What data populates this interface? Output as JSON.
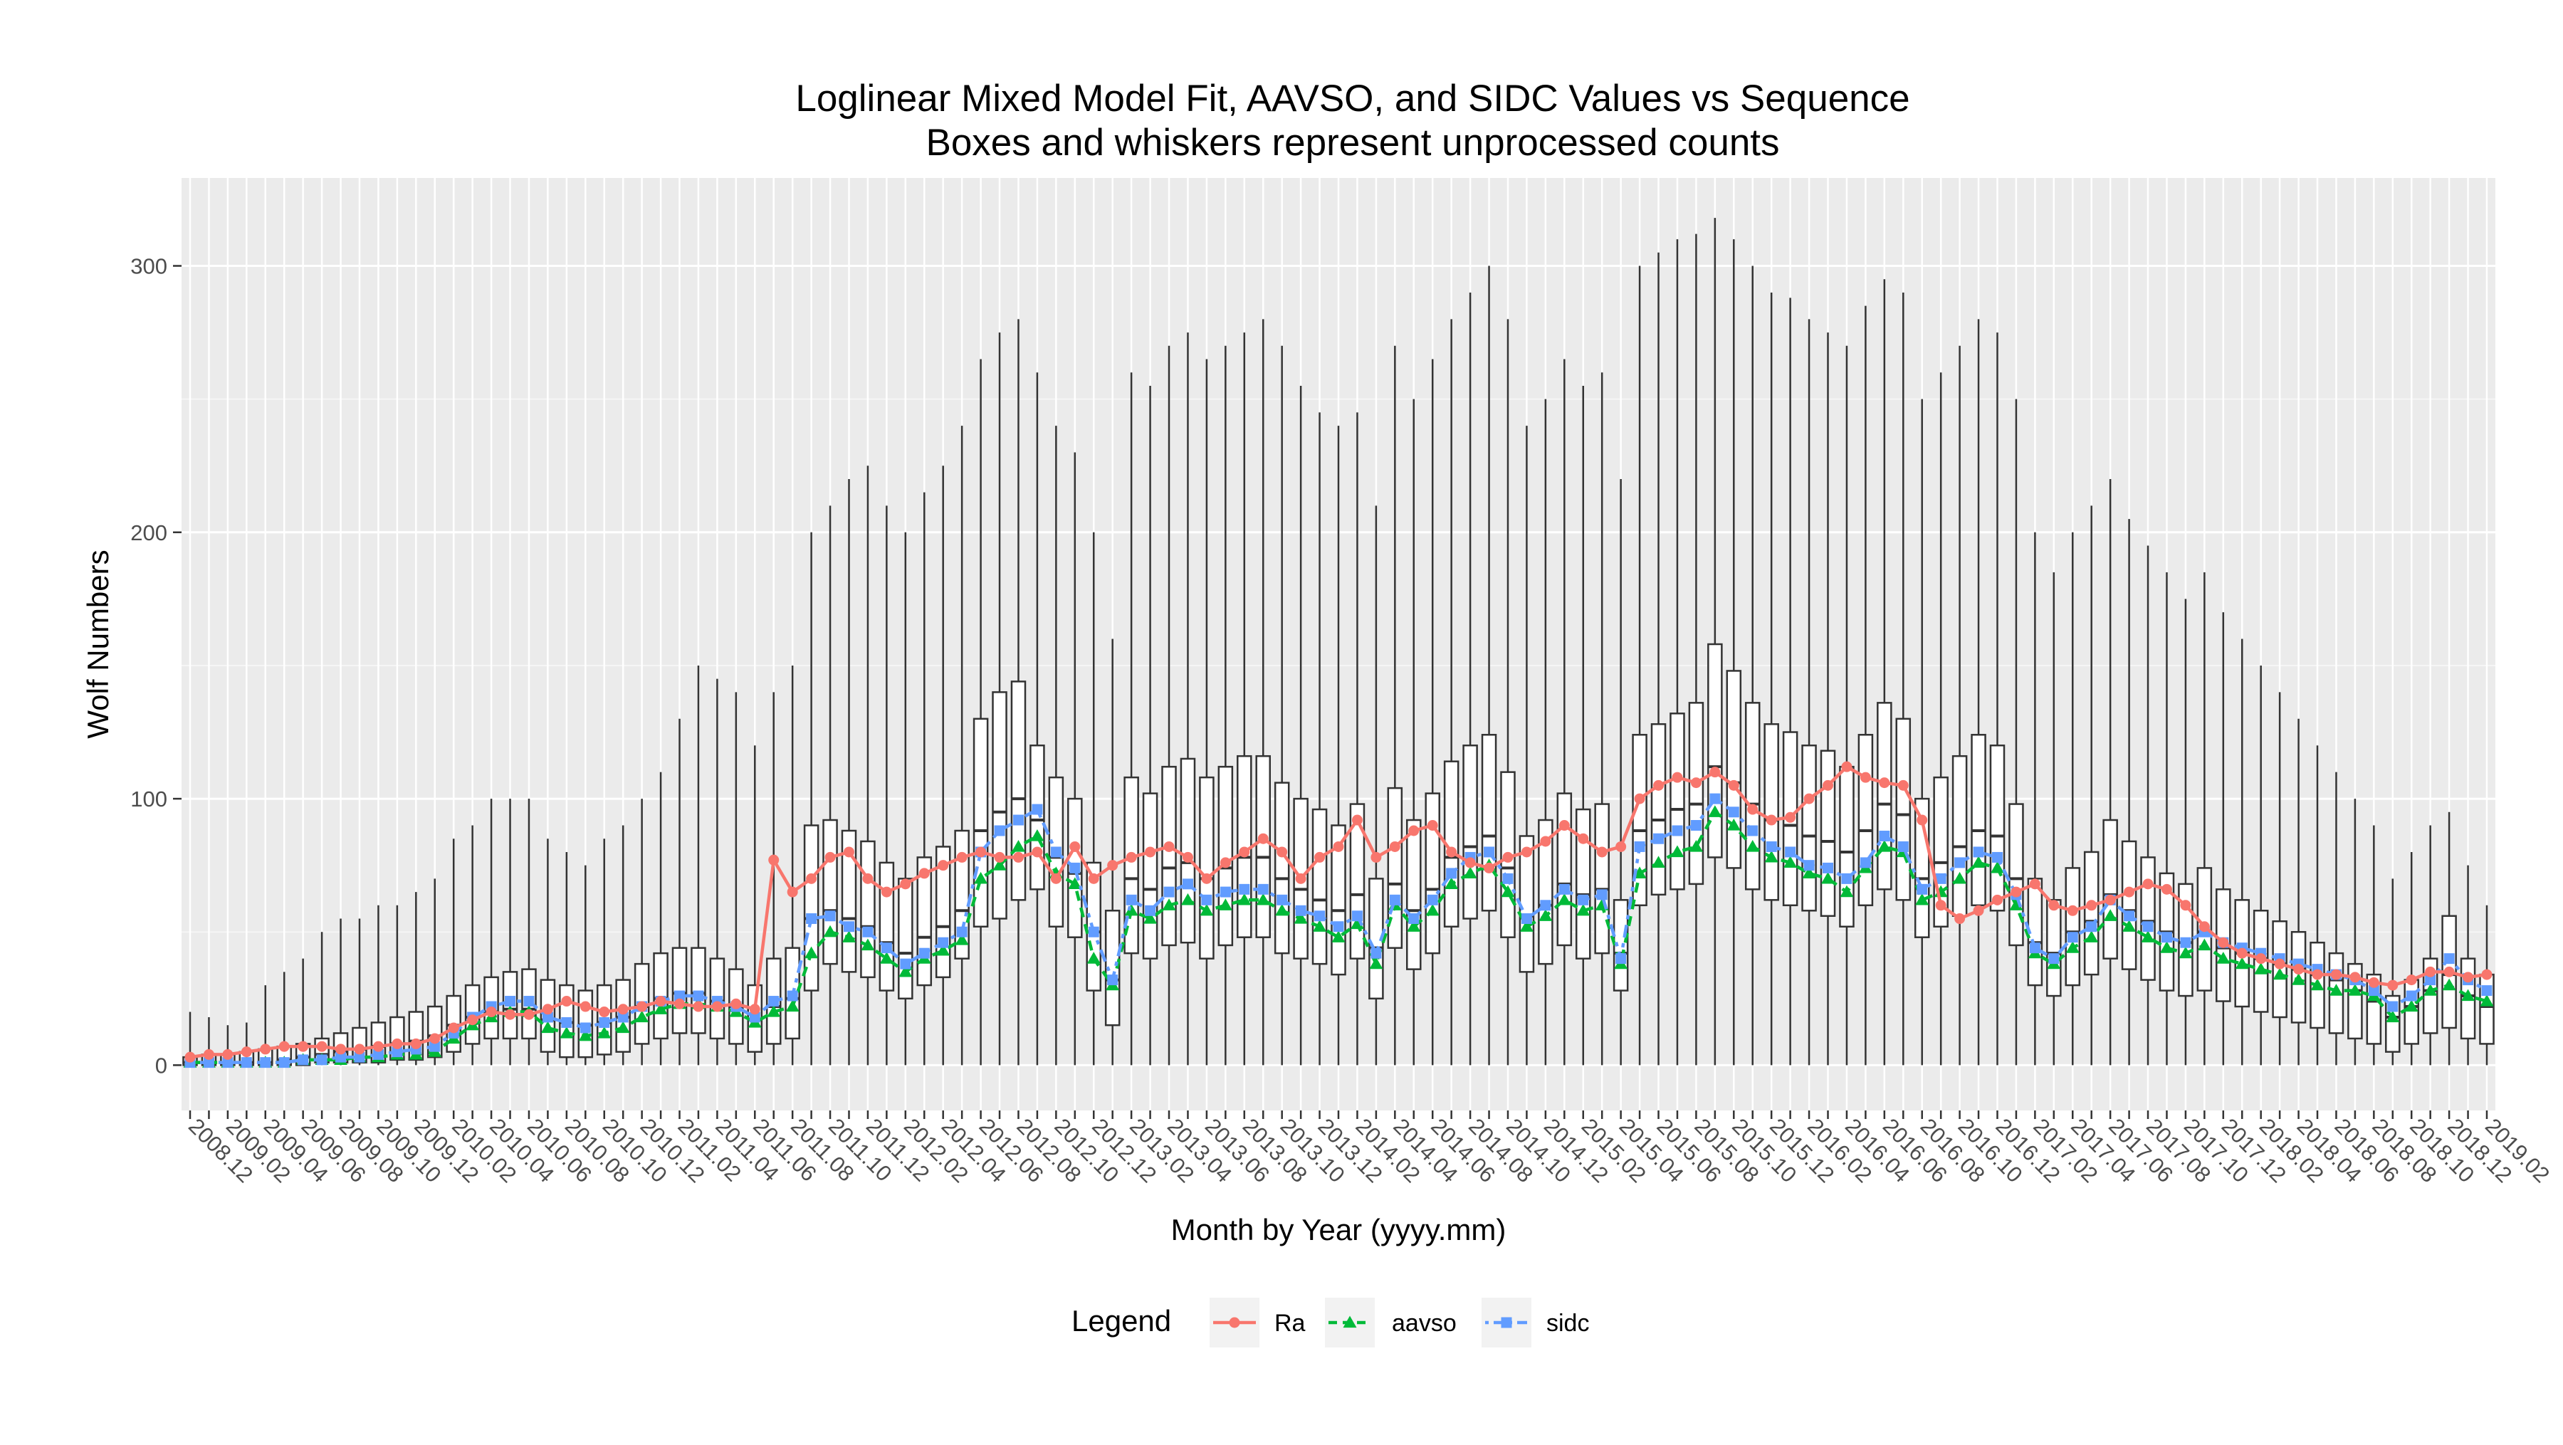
{
  "chart_data": {
    "type": "box",
    "title": "Loglinear Mixed Model Fit, AAVSO, and SIDC Values vs Sequence",
    "subtitle": "Boxes and whiskers represent unprocessed counts",
    "xlabel": "Month by Year (yyyy.mm)",
    "ylabel": "Wolf Numbers",
    "ylim": [
      -17,
      333
    ],
    "y_ticks": [
      0,
      100,
      200,
      300
    ],
    "x_tick_labels": [
      "2008.12",
      "2009.02",
      "2009.04",
      "2009.06",
      "2009.08",
      "2009.10",
      "2009.12",
      "2010.02",
      "2010.04",
      "2010.06",
      "2010.08",
      "2010.10",
      "2010.12",
      "2011.02",
      "2011.04",
      "2011.06",
      "2011.08",
      "2011.10",
      "2011.12",
      "2012.02",
      "2012.04",
      "2012.06",
      "2012.08",
      "2012.10",
      "2012.12",
      "2013.02",
      "2013.04",
      "2013.06",
      "2013.08",
      "2013.10",
      "2013.12",
      "2014.02",
      "2014.04",
      "2014.06",
      "2014.08",
      "2014.10",
      "2014.12",
      "2015.02",
      "2015.04",
      "2015.06",
      "2015.08",
      "2015.10",
      "2015.12",
      "2016.02",
      "2016.04",
      "2016.06",
      "2016.08",
      "2016.10",
      "2016.12",
      "2017.02",
      "2017.04",
      "2017.06",
      "2017.08",
      "2017.10",
      "2017.12",
      "2018.02",
      "2018.04",
      "2018.06",
      "2018.08",
      "2018.10",
      "2018.12",
      "2019.02"
    ],
    "months_count": 123,
    "background": "#EBEBEB",
    "grid": true,
    "legend": {
      "title": "Legend",
      "position": "bottom",
      "entries": [
        {
          "name": "Ra",
          "color": "#F8766D",
          "marker": "circle",
          "line": "solid"
        },
        {
          "name": "aavso",
          "color": "#00BA38",
          "marker": "triangle",
          "line": "dashed"
        },
        {
          "name": "sidc",
          "color": "#619CFF",
          "marker": "square",
          "line": "dotdash"
        }
      ]
    },
    "series_ra": [
      3,
      4,
      4,
      5,
      6,
      7,
      7,
      7,
      6,
      6,
      7,
      8,
      8,
      10,
      14,
      17,
      20,
      19,
      19,
      21,
      24,
      22,
      20,
      21,
      22,
      24,
      23,
      22,
      22,
      23,
      21,
      77,
      65,
      70,
      78,
      80,
      70,
      65,
      68,
      72,
      75,
      78,
      80,
      78,
      78,
      80,
      70,
      82,
      70,
      75,
      78,
      80,
      82,
      78,
      70,
      76,
      80,
      85,
      80,
      70,
      78,
      82,
      92,
      78,
      82,
      88,
      90,
      80,
      76,
      74,
      78,
      80,
      84,
      90,
      85,
      80,
      82,
      100,
      105,
      108,
      106,
      110,
      105,
      96,
      92,
      93,
      100,
      105,
      112,
      108,
      106,
      105,
      92,
      60,
      55,
      58,
      62,
      65,
      68,
      60,
      58,
      60,
      62,
      65,
      68,
      66,
      60,
      52,
      46,
      42,
      40,
      38,
      36,
      34,
      34,
      33,
      31,
      30,
      32,
      35,
      35,
      33,
      34
    ],
    "series_aavso": [
      1,
      1,
      1,
      1,
      1,
      1,
      2,
      2,
      2,
      3,
      3,
      4,
      4,
      5,
      10,
      15,
      18,
      20,
      20,
      14,
      12,
      11,
      12,
      14,
      18,
      21,
      23,
      23,
      22,
      20,
      16,
      20,
      22,
      42,
      50,
      48,
      45,
      40,
      35,
      40,
      43,
      47,
      70,
      75,
      82,
      86,
      72,
      68,
      40,
      30,
      58,
      55,
      60,
      62,
      58,
      60,
      62,
      62,
      58,
      55,
      52,
      48,
      53,
      38,
      60,
      52,
      58,
      68,
      72,
      75,
      65,
      52,
      56,
      62,
      58,
      60,
      38,
      72,
      76,
      80,
      82,
      95,
      90,
      82,
      78,
      76,
      72,
      70,
      65,
      74,
      82,
      80,
      62,
      65,
      70,
      76,
      74,
      60,
      42,
      38,
      44,
      48,
      56,
      52,
      48,
      44,
      42,
      45,
      40,
      38,
      36,
      34,
      32,
      30,
      28,
      28,
      26,
      18,
      22,
      28,
      30,
      26,
      24
    ],
    "series_sidc": [
      1,
      1,
      1,
      1,
      1,
      1,
      2,
      2,
      3,
      3,
      4,
      5,
      6,
      7,
      12,
      18,
      22,
      24,
      24,
      18,
      16,
      14,
      16,
      18,
      22,
      24,
      26,
      26,
      24,
      22,
      18,
      24,
      26,
      55,
      56,
      52,
      50,
      44,
      38,
      42,
      46,
      50,
      80,
      88,
      92,
      96,
      80,
      74,
      50,
      32,
      62,
      58,
      65,
      68,
      62,
      65,
      66,
      66,
      62,
      58,
      56,
      52,
      56,
      42,
      62,
      55,
      62,
      72,
      78,
      80,
      70,
      55,
      60,
      66,
      62,
      64,
      40,
      82,
      85,
      88,
      90,
      100,
      95,
      88,
      82,
      80,
      75,
      74,
      70,
      76,
      86,
      82,
      66,
      70,
      76,
      80,
      78,
      64,
      44,
      40,
      48,
      52,
      62,
      56,
      52,
      48,
      46,
      50,
      46,
      44,
      42,
      40,
      38,
      36,
      34,
      32,
      28,
      22,
      26,
      32,
      40,
      32,
      28
    ],
    "box_q1": [
      0,
      0,
      0,
      0,
      0,
      0,
      0,
      1,
      1,
      1,
      1,
      2,
      2,
      3,
      5,
      8,
      10,
      10,
      10,
      5,
      3,
      3,
      4,
      5,
      8,
      10,
      12,
      12,
      10,
      8,
      5,
      8,
      10,
      28,
      38,
      35,
      33,
      28,
      25,
      30,
      33,
      40,
      52,
      55,
      62,
      66,
      52,
      48,
      28,
      15,
      42,
      40,
      45,
      46,
      40,
      45,
      48,
      48,
      42,
      40,
      38,
      34,
      40,
      25,
      44,
      36,
      42,
      52,
      55,
      58,
      48,
      35,
      38,
      45,
      40,
      42,
      28,
      60,
      64,
      66,
      68,
      78,
      74,
      66,
      62,
      60,
      58,
      56,
      52,
      60,
      66,
      62,
      48,
      52,
      56,
      60,
      58,
      45,
      30,
      26,
      30,
      34,
      40,
      36,
      32,
      28,
      26,
      28,
      24,
      22,
      20,
      18,
      16,
      14,
      12,
      10,
      8,
      5,
      8,
      12,
      14,
      10,
      8
    ],
    "box_q3": [
      3,
      4,
      4,
      5,
      6,
      7,
      8,
      10,
      12,
      14,
      16,
      18,
      20,
      22,
      26,
      30,
      33,
      35,
      36,
      32,
      30,
      28,
      30,
      32,
      38,
      42,
      44,
      44,
      40,
      36,
      30,
      40,
      44,
      90,
      92,
      88,
      84,
      76,
      70,
      78,
      82,
      88,
      130,
      140,
      144,
      120,
      108,
      100,
      76,
      58,
      108,
      102,
      112,
      115,
      108,
      112,
      116,
      116,
      106,
      100,
      96,
      90,
      98,
      70,
      104,
      92,
      102,
      114,
      120,
      124,
      110,
      86,
      92,
      102,
      96,
      98,
      62,
      124,
      128,
      132,
      136,
      158,
      148,
      136,
      128,
      125,
      120,
      118,
      112,
      124,
      136,
      130,
      100,
      108,
      116,
      124,
      120,
      98,
      70,
      62,
      74,
      80,
      92,
      84,
      78,
      72,
      68,
      74,
      66,
      62,
      58,
      54,
      50,
      46,
      42,
      38,
      34,
      26,
      32,
      40,
      56,
      40,
      34
    ],
    "box_median": [
      1,
      1,
      1,
      1,
      1,
      2,
      3,
      4,
      5,
      6,
      7,
      8,
      9,
      11,
      15,
      18,
      20,
      21,
      21,
      17,
      16,
      15,
      16,
      18,
      22,
      25,
      27,
      27,
      24,
      22,
      17,
      22,
      25,
      55,
      58,
      55,
      52,
      46,
      42,
      48,
      52,
      58,
      88,
      95,
      100,
      92,
      78,
      72,
      50,
      32,
      70,
      66,
      74,
      76,
      70,
      74,
      78,
      78,
      70,
      66,
      62,
      58,
      64,
      44,
      68,
      58,
      66,
      78,
      82,
      86,
      74,
      56,
      60,
      68,
      64,
      66,
      42,
      88,
      92,
      96,
      98,
      112,
      106,
      98,
      92,
      90,
      86,
      84,
      80,
      88,
      98,
      94,
      70,
      76,
      82,
      88,
      86,
      70,
      46,
      42,
      50,
      54,
      64,
      58,
      54,
      50,
      46,
      50,
      44,
      42,
      40,
      38,
      36,
      34,
      32,
      28,
      24,
      18,
      22,
      28,
      34,
      26,
      22
    ],
    "whisker_high": [
      20,
      18,
      15,
      16,
      30,
      35,
      40,
      50,
      55,
      55,
      60,
      60,
      65,
      70,
      85,
      90,
      100,
      100,
      100,
      85,
      80,
      75,
      85,
      90,
      100,
      110,
      130,
      150,
      145,
      140,
      120,
      140,
      150,
      200,
      210,
      220,
      225,
      210,
      200,
      215,
      225,
      240,
      265,
      275,
      280,
      260,
      240,
      230,
      200,
      160,
      260,
      255,
      270,
      275,
      265,
      270,
      275,
      280,
      270,
      255,
      245,
      240,
      245,
      210,
      270,
      250,
      265,
      280,
      290,
      300,
      280,
      240,
      250,
      265,
      255,
      260,
      220,
      300,
      305,
      310,
      312,
      318,
      310,
      300,
      290,
      288,
      280,
      275,
      270,
      285,
      295,
      290,
      250,
      260,
      270,
      280,
      275,
      250,
      200,
      185,
      200,
      210,
      220,
      205,
      195,
      185,
      175,
      185,
      170,
      160,
      150,
      140,
      130,
      120,
      110,
      100,
      90,
      70,
      80,
      90,
      95,
      75,
      60
    ],
    "whisker_low": [
      0,
      0,
      0,
      0,
      0,
      0,
      0,
      0,
      0,
      0,
      0,
      0,
      0,
      0,
      0,
      0,
      0,
      0,
      0,
      0,
      0,
      0,
      0,
      0,
      0,
      0,
      0,
      0,
      0,
      0,
      0,
      0,
      0,
      0,
      0,
      0,
      0,
      0,
      0,
      0,
      0,
      0,
      0,
      0,
      0,
      0,
      0,
      0,
      0,
      0,
      0,
      0,
      0,
      0,
      0,
      0,
      0,
      0,
      0,
      0,
      0,
      0,
      0,
      0,
      0,
      0,
      0,
      0,
      0,
      0,
      0,
      0,
      0,
      0,
      0,
      0,
      0,
      0,
      0,
      0,
      0,
      0,
      0,
      0,
      0,
      0,
      0,
      0,
      0,
      0,
      0,
      0,
      0,
      0,
      0,
      0,
      0,
      0,
      0,
      0,
      0,
      0,
      0,
      0,
      0,
      0,
      0,
      0,
      0,
      0,
      0,
      0,
      0,
      0,
      0,
      0,
      0,
      0,
      0,
      0,
      0,
      0,
      0
    ]
  }
}
